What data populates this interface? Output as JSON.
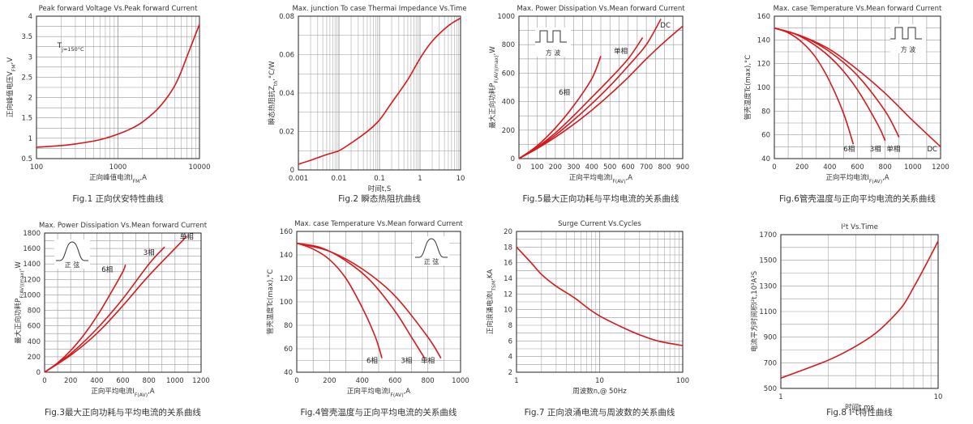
{
  "chart_data": [
    {
      "type": "line",
      "title": "Peak forward Voltage Vs.Peak forward Current",
      "xlabel": "正向峰值电流I_FM,A",
      "ylabel": "正向峰值电压V_FM,V",
      "xscale": "log",
      "xlim": [
        100,
        10000
      ],
      "ylim": [
        0.5,
        4
      ],
      "xticks": [
        100,
        1000,
        10000
      ],
      "yticks": [
        0.5,
        1,
        1.5,
        2,
        2.5,
        3,
        3.5,
        4
      ],
      "xtick_labels": [
        "100",
        "1000",
        "10000"
      ],
      "ytick_labels": [
        "0.5",
        "1",
        "1.5",
        "2",
        "2.5",
        "3",
        "3.5",
        "4"
      ],
      "annotations": [
        {
          "text": "T_j=150°C",
          "x": 180,
          "y": 3.22
        }
      ],
      "series": [
        {
          "points": [
            [
              100,
              0.78
            ],
            [
              200,
              0.82
            ],
            [
              300,
              0.86
            ],
            [
              500,
              0.93
            ],
            [
              700,
              1.0
            ],
            [
              1000,
              1.1
            ],
            [
              1500,
              1.25
            ],
            [
              2000,
              1.4
            ],
            [
              3000,
              1.7
            ],
            [
              4000,
              2.0
            ],
            [
              5000,
              2.3
            ],
            [
              6000,
              2.65
            ],
            [
              7000,
              3.0
            ],
            [
              8000,
              3.3
            ],
            [
              10000,
              3.8
            ]
          ]
        }
      ],
      "caption": "Fig.1 正向伏安特性曲线"
    },
    {
      "type": "line",
      "title": "Max. junction To case Thermai Impedance Vs.Time",
      "xlabel": "时间t,S",
      "ylabel": "瞬态热阻抗Z_th,°C/W",
      "xscale": "log",
      "xlim": [
        0.001,
        10
      ],
      "ylim": [
        0,
        0.08
      ],
      "xticks": [
        0.001,
        0.01,
        0.1,
        1,
        10
      ],
      "yticks": [
        0,
        0.02,
        0.04,
        0.06,
        0.08
      ],
      "xtick_labels": [
        "0.001",
        "0.01",
        "0.1",
        "1",
        "10"
      ],
      "ytick_labels": [
        "0",
        "0.02",
        "0.04",
        "0.06",
        "0.08"
      ],
      "series": [
        {
          "points": [
            [
              0.001,
              0.003
            ],
            [
              0.002,
              0.005
            ],
            [
              0.005,
              0.008
            ],
            [
              0.01,
              0.01
            ],
            [
              0.02,
              0.014
            ],
            [
              0.05,
              0.02
            ],
            [
              0.1,
              0.026
            ],
            [
              0.2,
              0.035
            ],
            [
              0.5,
              0.047
            ],
            [
              1,
              0.058
            ],
            [
              2,
              0.067
            ],
            [
              5,
              0.075
            ],
            [
              10,
              0.079
            ]
          ]
        }
      ],
      "caption": "Fig.2 瞬态热阻抗曲线"
    },
    {
      "type": "line",
      "title": "Max. Power Dissipation Vs.Mean forward Current",
      "xlabel": "正向平均电流I_F(AV),A",
      "ylabel": "最大正向功耗P_F(AV)(max),W",
      "xlim": [
        0,
        900
      ],
      "ylim": [
        0,
        1000
      ],
      "xticks": [
        0,
        100,
        200,
        300,
        400,
        500,
        600,
        700,
        800,
        900
      ],
      "yticks": [
        0,
        200,
        400,
        600,
        800,
        1000
      ],
      "xtick_labels": [
        "0",
        "100",
        "200",
        "300",
        "400",
        "500",
        "600",
        "700",
        "800",
        "900"
      ],
      "ytick_labels": [
        "0",
        "200",
        "400",
        "600",
        "800",
        "1000"
      ],
      "inset": {
        "shape": "square",
        "label": "方 波"
      },
      "series_labels": [
        {
          "text": "6相",
          "x": 250,
          "y": 450
        },
        {
          "text": "单相",
          "x": 560,
          "y": 740
        },
        {
          "text": "DC",
          "x": 805,
          "y": 920
        }
      ],
      "series": [
        {
          "points": [
            [
              0,
              0
            ],
            [
              100,
              90
            ],
            [
              200,
              215
            ],
            [
              300,
              370
            ],
            [
              400,
              560
            ],
            [
              450,
              720
            ]
          ]
        },
        {
          "points": [
            [
              0,
              0
            ],
            [
              100,
              80
            ],
            [
              200,
              180
            ],
            [
              300,
              300
            ],
            [
              400,
              430
            ],
            [
              500,
              560
            ],
            [
              600,
              700
            ],
            [
              680,
              850
            ]
          ]
        },
        {
          "points": [
            [
              0,
              0
            ],
            [
              100,
              75
            ],
            [
              200,
              165
            ],
            [
              300,
              270
            ],
            [
              400,
              385
            ],
            [
              500,
              510
            ],
            [
              600,
              650
            ],
            [
              700,
              800
            ],
            [
              780,
              980
            ]
          ]
        },
        {
          "points": [
            [
              0,
              0
            ],
            [
              100,
              70
            ],
            [
              200,
              150
            ],
            [
              300,
              240
            ],
            [
              400,
              340
            ],
            [
              500,
              450
            ],
            [
              600,
              570
            ],
            [
              700,
              700
            ],
            [
              800,
              820
            ],
            [
              900,
              930
            ]
          ]
        }
      ],
      "caption": "Fig.5最大正向功耗与平均电流的关系曲线"
    },
    {
      "type": "line",
      "title": "Max. case Temperature Vs.Mean forward Current",
      "xlabel": "正向平均电流I_F(AV),A",
      "ylabel": "管壳温度Tc(max),°C",
      "xlim": [
        0,
        1200
      ],
      "ylim": [
        40,
        160
      ],
      "xticks": [
        0,
        200,
        400,
        600,
        800,
        1000,
        1200
      ],
      "yticks": [
        40,
        60,
        80,
        100,
        120,
        140,
        160
      ],
      "xtick_labels": [
        "0",
        "200",
        "400",
        "600",
        "800",
        "1000",
        "1200"
      ],
      "ytick_labels": [
        "40",
        "60",
        "80",
        "100",
        "120",
        "140",
        "160"
      ],
      "inset": {
        "shape": "square",
        "label": "方 波"
      },
      "series_labels": [
        {
          "text": "6相",
          "x": 540,
          "y": 46
        },
        {
          "text": "3相",
          "x": 730,
          "y": 46
        },
        {
          "text": "单相",
          "x": 860,
          "y": 46
        },
        {
          "text": "DC",
          "x": 1140,
          "y": 46
        }
      ],
      "series": [
        {
          "points": [
            [
              0,
              150
            ],
            [
              100,
              146
            ],
            [
              200,
              138
            ],
            [
              300,
              125
            ],
            [
              400,
              105
            ],
            [
              500,
              78
            ],
            [
              570,
              52
            ]
          ]
        },
        {
          "points": [
            [
              0,
              150
            ],
            [
              150,
              145
            ],
            [
              300,
              135
            ],
            [
              450,
              120
            ],
            [
              600,
              98
            ],
            [
              750,
              68
            ],
            [
              800,
              55
            ]
          ]
        },
        {
          "points": [
            [
              0,
              150
            ],
            [
              200,
              143
            ],
            [
              400,
              130
            ],
            [
              600,
              110
            ],
            [
              800,
              80
            ],
            [
              900,
              58
            ]
          ]
        },
        {
          "points": [
            [
              0,
              150
            ],
            [
              200,
              143
            ],
            [
              400,
              132
            ],
            [
              600,
              115
            ],
            [
              800,
              95
            ],
            [
              1000,
              72
            ],
            [
              1200,
              50
            ]
          ]
        }
      ],
      "caption": "Fig.6管壳温度与正向平均电流的关系曲线"
    },
    {
      "type": "line",
      "title": "Max. Power Dissipation Vs.Mean forward Current",
      "xlabel": "正向平均电流I_F(AV),A",
      "ylabel": "最大正向功耗P_F(AV)(max),W",
      "xlim": [
        0,
        1200
      ],
      "ylim": [
        0,
        1800
      ],
      "xticks": [
        0,
        200,
        400,
        600,
        800,
        1000,
        1200
      ],
      "yticks": [
        0,
        200,
        400,
        600,
        800,
        1000,
        1200,
        1400,
        1600,
        1800
      ],
      "xtick_labels": [
        "0",
        "200",
        "400",
        "600",
        "800",
        "1000",
        "1200"
      ],
      "ytick_labels": [
        "0",
        "200",
        "400",
        "600",
        "800",
        "1000",
        "1200",
        "1400",
        "1600",
        "1800"
      ],
      "inset": {
        "shape": "sine",
        "label": "正 弦"
      },
      "series_labels": [
        {
          "text": "6相",
          "x": 480,
          "y": 1300
        },
        {
          "text": "3相",
          "x": 800,
          "y": 1520
        },
        {
          "text": "单相",
          "x": 1090,
          "y": 1720
        }
      ],
      "series": [
        {
          "points": [
            [
              0,
              0
            ],
            [
              100,
              120
            ],
            [
              200,
              280
            ],
            [
              300,
              480
            ],
            [
              400,
              720
            ],
            [
              500,
              1000
            ],
            [
              600,
              1300
            ],
            [
              620,
              1390
            ]
          ]
        },
        {
          "points": [
            [
              0,
              0
            ],
            [
              200,
              240
            ],
            [
              400,
              560
            ],
            [
              600,
              950
            ],
            [
              800,
              1400
            ],
            [
              920,
              1620
            ]
          ]
        },
        {
          "points": [
            [
              0,
              0
            ],
            [
              200,
              220
            ],
            [
              400,
              500
            ],
            [
              600,
              860
            ],
            [
              800,
              1250
            ],
            [
              1000,
              1600
            ],
            [
              1090,
              1760
            ]
          ]
        }
      ],
      "caption": "Fig.3最大正向功耗与平均电流的关系曲线"
    },
    {
      "type": "line",
      "title": "Max. case Temperature Vs.Mean forward Current",
      "xlabel": "正向平均电流I_F(AV),A",
      "ylabel": "管壳温度Tc(max),°C",
      "xlim": [
        0,
        1000
      ],
      "ylim": [
        40,
        160
      ],
      "xticks": [
        0,
        200,
        400,
        600,
        800,
        1000
      ],
      "yticks": [
        40,
        60,
        80,
        100,
        120,
        140,
        160
      ],
      "xtick_labels": [
        "0",
        "200",
        "400",
        "600",
        "800",
        "1000"
      ],
      "ytick_labels": [
        "40",
        "60",
        "80",
        "100",
        "120",
        "140",
        "160"
      ],
      "inset": {
        "shape": "sine",
        "label": "正 弦"
      },
      "series_labels": [
        {
          "text": "6相",
          "x": 460,
          "y": 48
        },
        {
          "text": "3相",
          "x": 670,
          "y": 48
        },
        {
          "text": "单相",
          "x": 800,
          "y": 48
        }
      ],
      "series": [
        {
          "points": [
            [
              0,
              150
            ],
            [
              100,
              145
            ],
            [
              200,
              136
            ],
            [
              300,
              120
            ],
            [
              400,
              95
            ],
            [
              480,
              70
            ],
            [
              520,
              52
            ]
          ]
        },
        {
          "points": [
            [
              0,
              150
            ],
            [
              150,
              146
            ],
            [
              300,
              135
            ],
            [
              450,
              118
            ],
            [
              600,
              92
            ],
            [
              700,
              70
            ],
            [
              780,
              52
            ]
          ]
        },
        {
          "points": [
            [
              0,
              150
            ],
            [
              200,
              143
            ],
            [
              400,
              128
            ],
            [
              600,
              105
            ],
            [
              800,
              70
            ],
            [
              880,
              52
            ]
          ]
        }
      ],
      "caption": "Fig.4管壳温度与正向平均电流的关系曲线"
    },
    {
      "type": "line",
      "title": "Surge Current Vs.Cycles",
      "xlabel": "周波数n,@ 50Hz",
      "ylabel": "正向浪涌电流I_TSM,KA",
      "xscale": "log",
      "xlim": [
        1,
        100
      ],
      "ylim": [
        2,
        20
      ],
      "xticks": [
        1,
        10,
        100
      ],
      "yticks": [
        2,
        4,
        6,
        8,
        10,
        12,
        14,
        16,
        18,
        20
      ],
      "xtick_labels": [
        "1",
        "10",
        "100"
      ],
      "ytick_labels": [
        "2",
        "4",
        "6",
        "8",
        "10",
        "12",
        "14",
        "16",
        "18",
        "20"
      ],
      "series": [
        {
          "points": [
            [
              1,
              18
            ],
            [
              1.5,
              16
            ],
            [
              2,
              14.5
            ],
            [
              3,
              13
            ],
            [
              5,
              11.5
            ],
            [
              7,
              10.3
            ],
            [
              10,
              9.2
            ],
            [
              20,
              7.6
            ],
            [
              30,
              6.8
            ],
            [
              50,
              6
            ],
            [
              100,
              5.4
            ]
          ]
        }
      ],
      "caption": "Fig.7 正向浪涌电流与周波数的关系曲线"
    },
    {
      "type": "line",
      "title": "I²t Vs.Time",
      "xlabel": "时间t,ms",
      "ylabel": "电流平方时间积I²t,10³A²S",
      "xscale": "log",
      "xlim": [
        1,
        10
      ],
      "ylim": [
        500,
        1700
      ],
      "xticks": [
        1,
        10
      ],
      "yticks": [
        500,
        700,
        900,
        1100,
        1300,
        1500,
        1700
      ],
      "xtick_labels": [
        "1",
        "10"
      ],
      "ytick_labels": [
        "500",
        "700",
        "900",
        "1100",
        "1300",
        "1500",
        "1700"
      ],
      "series": [
        {
          "points": [
            [
              1,
              580
            ],
            [
              2,
              720
            ],
            [
              3,
              830
            ],
            [
              4,
              930
            ],
            [
              5,
              1040
            ],
            [
              6,
              1150
            ],
            [
              7,
              1290
            ],
            [
              8,
              1420
            ],
            [
              9,
              1540
            ],
            [
              10,
              1650
            ]
          ]
        }
      ],
      "caption": "Fig.8 I²t特性曲线"
    }
  ]
}
